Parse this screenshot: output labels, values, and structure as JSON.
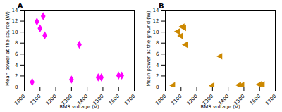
{
  "chart_data": [
    {
      "type": "scatter",
      "title": "A",
      "x": [
        1050,
        1080,
        1100,
        1120,
        1130,
        1300,
        1350,
        1470,
        1490,
        1600,
        1620
      ],
      "values": [
        0.9,
        11.9,
        10.7,
        12.9,
        9.4,
        1.35,
        7.7,
        1.75,
        1.75,
        2.1,
        2.1
      ],
      "color": "#FF00FF",
      "marker": "diamond",
      "xlabel": "RMS voltage (V)",
      "ylabel": "Mean power at the source (W)",
      "xlim": [
        1000,
        1700
      ],
      "ylim": [
        0,
        14
      ],
      "xticks": [
        1000,
        1100,
        1200,
        1300,
        1400,
        1500,
        1600,
        1700
      ],
      "yticks": [
        0,
        2,
        4,
        6,
        8,
        10,
        12,
        14
      ]
    },
    {
      "type": "scatter",
      "title": "B",
      "x": [
        1050,
        1080,
        1100,
        1110,
        1120,
        1130,
        1300,
        1350,
        1470,
        1490,
        1600,
        1620
      ],
      "values": [
        0.3,
        10.1,
        9.3,
        11.0,
        10.8,
        7.7,
        0.25,
        5.6,
        0.35,
        0.35,
        0.45,
        0.45
      ],
      "color": "#CC8800",
      "marker": "triangle_left",
      "xlabel": "RMS voltage (V)",
      "ylabel": "Mean power at the ground (W)",
      "xlim": [
        1000,
        1700
      ],
      "ylim": [
        0,
        14
      ],
      "xticks": [
        1000,
        1100,
        1200,
        1300,
        1400,
        1500,
        1600,
        1700
      ],
      "yticks": [
        0,
        2,
        4,
        6,
        8,
        10,
        12,
        14
      ]
    }
  ]
}
